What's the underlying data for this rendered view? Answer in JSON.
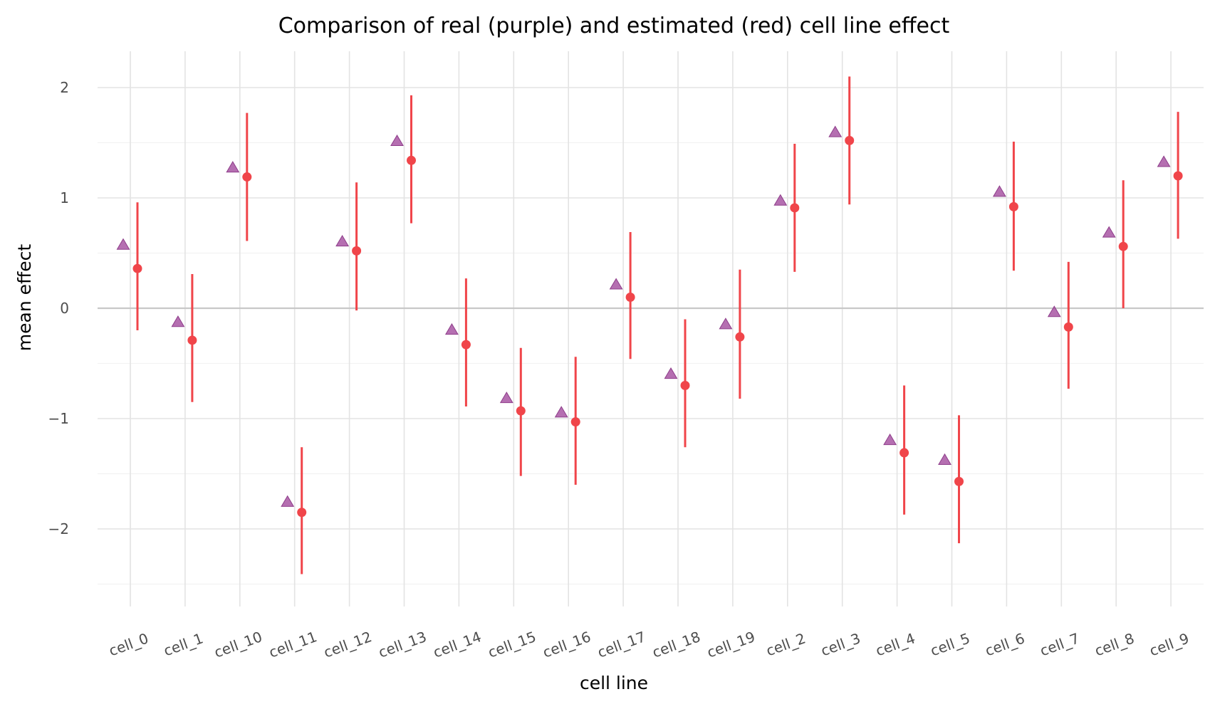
{
  "chart_data": {
    "type": "scatter",
    "title": "Comparison of real (purple) and estimated (red) cell line effect",
    "xlabel": "cell line",
    "ylabel": "mean effect",
    "categories": [
      "cell_0",
      "cell_1",
      "cell_10",
      "cell_11",
      "cell_12",
      "cell_13",
      "cell_14",
      "cell_15",
      "cell_16",
      "cell_17",
      "cell_18",
      "cell_19",
      "cell_2",
      "cell_3",
      "cell_4",
      "cell_5",
      "cell_6",
      "cell_7",
      "cell_8",
      "cell_9"
    ],
    "ylim": [
      -2.6,
      2.3
    ],
    "yticks": [
      -2,
      -1,
      0,
      1,
      2
    ],
    "ytick_labels": [
      "−2",
      "−1",
      "0",
      "1",
      "2"
    ],
    "grid": true,
    "series": [
      {
        "name": "real",
        "marker": "triangle",
        "color": "#a24b9e",
        "values": [
          0.57,
          -0.13,
          1.27,
          -1.76,
          0.6,
          1.51,
          -0.2,
          -0.82,
          -0.95,
          0.21,
          -0.6,
          -0.15,
          0.97,
          1.59,
          -1.2,
          -1.38,
          1.05,
          -0.04,
          0.68,
          1.32
        ]
      },
      {
        "name": "estimated",
        "marker": "circle",
        "color": "#f0454a",
        "values": [
          0.36,
          -0.29,
          1.19,
          -1.85,
          0.52,
          1.34,
          -0.33,
          -0.93,
          -1.03,
          0.1,
          -0.7,
          -0.26,
          0.91,
          1.52,
          -1.31,
          -1.57,
          0.92,
          -0.17,
          0.56,
          1.2
        ],
        "lower": [
          -0.2,
          -0.85,
          0.61,
          -2.41,
          -0.02,
          0.77,
          -0.89,
          -1.52,
          -1.6,
          -0.46,
          -1.26,
          -0.82,
          0.33,
          0.94,
          -1.87,
          -2.13,
          0.34,
          -0.73,
          0.0,
          0.63
        ],
        "upper": [
          0.96,
          0.31,
          1.77,
          -1.26,
          1.14,
          1.93,
          0.27,
          -0.36,
          -0.44,
          0.69,
          -0.1,
          0.35,
          1.49,
          2.1,
          -0.7,
          -0.97,
          1.51,
          0.42,
          1.16,
          1.78
        ]
      }
    ]
  }
}
